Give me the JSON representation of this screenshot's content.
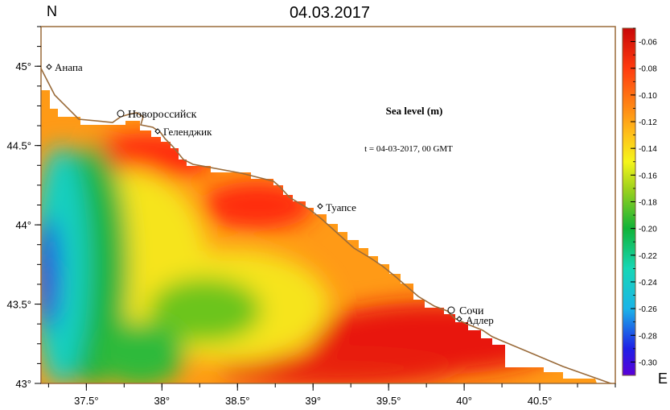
{
  "title": "04.03.2017",
  "corner_labels": {
    "north": "N",
    "east": "E"
  },
  "map_title": "Sea level (m)",
  "timestamp": "t = 04-03-2017,  00 GMT",
  "colors": {
    "land": "#ffffff",
    "coastline": "#9a6b3a",
    "frame": "#9a6b3a"
  },
  "axes": {
    "lon_range": [
      37.2,
      41.0
    ],
    "lat_range": [
      43.0,
      45.25
    ],
    "lon_ticks": [
      {
        "value": 37.5,
        "label": "37.5°"
      },
      {
        "value": 38.0,
        "label": "38°"
      },
      {
        "value": 38.5,
        "label": "38.5°"
      },
      {
        "value": 39.0,
        "label": "39°"
      },
      {
        "value": 39.5,
        "label": "39.5°"
      },
      {
        "value": 40.0,
        "label": "40°"
      },
      {
        "value": 40.5,
        "label": "40.5°"
      }
    ],
    "lat_ticks": [
      {
        "value": 43.0,
        "label": "43°"
      },
      {
        "value": 43.5,
        "label": "43.5°"
      },
      {
        "value": 44.0,
        "label": "44°"
      },
      {
        "value": 44.5,
        "label": "44.5°"
      },
      {
        "value": 45.0,
        "label": "45°"
      }
    ]
  },
  "cities": [
    {
      "name": "Анапа",
      "lon": 37.25,
      "lat": 45.0,
      "marker": "diamond"
    },
    {
      "name": "Новороссийск",
      "lon": 37.76,
      "lat": 44.71,
      "marker": "circle"
    },
    {
      "name": "Геленджик",
      "lon": 38.0,
      "lat": 44.58,
      "marker": "diamond"
    },
    {
      "name": "Туапсе",
      "lon": 39.07,
      "lat": 44.12,
      "marker": "diamond"
    },
    {
      "name": "Сочи",
      "lon": 39.92,
      "lat": 43.47,
      "marker": "circle"
    },
    {
      "name": "Адлер",
      "lon": 39.93,
      "lat": 43.42,
      "marker": "diamond"
    }
  ],
  "colorbar": {
    "min": -0.31,
    "max": -0.05,
    "ticks": [
      "-0.06",
      "-0.08",
      "-0.10",
      "-0.12",
      "-0.14",
      "-0.16",
      "-0.18",
      "-0.20",
      "-0.22",
      "-0.24",
      "-0.26",
      "-0.28",
      "-0.30"
    ],
    "tick_values": [
      -0.06,
      -0.08,
      -0.1,
      -0.12,
      -0.14,
      -0.16,
      -0.18,
      -0.2,
      -0.22,
      -0.24,
      -0.26,
      -0.28,
      -0.3
    ],
    "stops": [
      {
        "v": -0.31,
        "color": "#5a00d8"
      },
      {
        "v": -0.29,
        "color": "#1f1fe6"
      },
      {
        "v": -0.26,
        "color": "#1bb4e8"
      },
      {
        "v": -0.23,
        "color": "#17d7b5"
      },
      {
        "v": -0.2,
        "color": "#11b338"
      },
      {
        "v": -0.17,
        "color": "#9fd21c"
      },
      {
        "v": -0.15,
        "color": "#f5f51b"
      },
      {
        "v": -0.13,
        "color": "#ffc21a"
      },
      {
        "v": -0.11,
        "color": "#ff8a14"
      },
      {
        "v": -0.08,
        "color": "#ff3b0f"
      },
      {
        "v": -0.05,
        "color": "#c80707"
      }
    ]
  }
}
